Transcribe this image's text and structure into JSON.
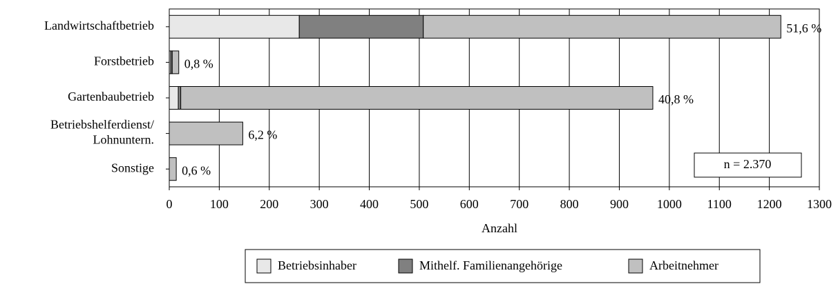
{
  "chart_data": {
    "type": "bar",
    "orientation": "horizontal",
    "stacked": true,
    "categories": [
      "Landwirtschaftbetrieb",
      "Forstbetrieb",
      "Gartenbaubetrieb",
      "Betriebshelferdienst/\nLohnuntern.",
      "Sonstige"
    ],
    "series": [
      {
        "name": "Betriebsinhaber",
        "color": "#e8e8e8",
        "values": [
          260,
          3,
          18,
          0,
          0
        ]
      },
      {
        "name": "Mithelf. Familienangehörige",
        "color": "#808080",
        "values": [
          248,
          3,
          5,
          0,
          0
        ]
      },
      {
        "name": "Arbeitnehmer",
        "color": "#c0c0c0",
        "values": [
          715,
          13,
          944,
          147,
          14
        ]
      }
    ],
    "share_labels": [
      "51,6 %",
      "0,8 %",
      "40,8 %",
      "6,2 %",
      "0,6 %"
    ],
    "annotation": "n = 2.370",
    "xlabel": "Anzahl",
    "xlim": [
      0,
      1300
    ],
    "xticks": [
      0,
      100,
      200,
      300,
      400,
      500,
      600,
      700,
      800,
      900,
      1000,
      1100,
      1200,
      1300
    ],
    "grid": true,
    "legend": "bottom"
  }
}
